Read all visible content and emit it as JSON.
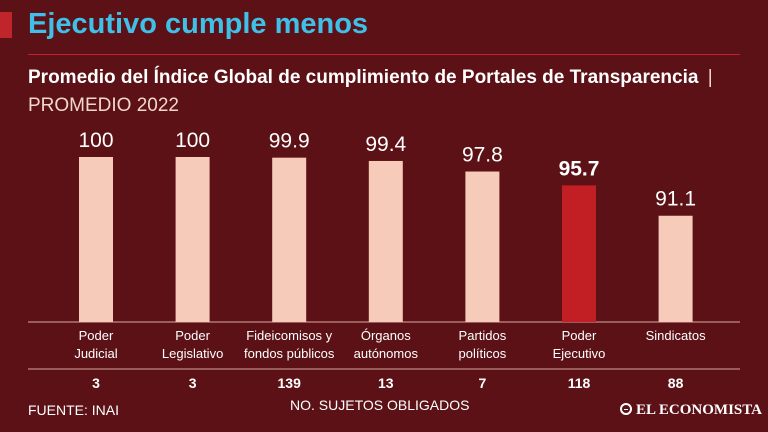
{
  "header": {
    "title": "Ejecutivo cumple menos",
    "subtitle_bold": "Promedio del Índice Global de cumplimiento de Portales de Transparencia",
    "subtitle_sep": "|",
    "subtitle_light": "PROMEDIO 2022"
  },
  "colors": {
    "background": "#5b1116",
    "bar": "#f6cbb9",
    "highlight_bar": "#c21f25",
    "headline": "#3fc0e8",
    "rule": "#c0252b"
  },
  "chart_data": {
    "type": "bar",
    "title": "Promedio del Índice Global de cumplimiento de Portales de Transparencia",
    "categories": [
      [
        "Poder",
        "Judicial"
      ],
      [
        "Poder",
        "Legislativo"
      ],
      [
        "Fideicomisos y",
        "fondos públicos"
      ],
      [
        "Órganos",
        "autónomos"
      ],
      [
        "Partidos",
        "políticos"
      ],
      [
        "Poder",
        "Ejecutivo"
      ],
      [
        "Sindicatos"
      ]
    ],
    "values": [
      100,
      100,
      99.9,
      99.4,
      97.8,
      95.7,
      91.1
    ],
    "value_labels": [
      "100",
      "100",
      "99.9",
      "99.4",
      "97.8",
      "95.7",
      "91.1"
    ],
    "highlight_index": 5,
    "sujetos_obligados": [
      "3",
      "3",
      "139",
      "13",
      "7",
      "118",
      "88"
    ],
    "ylim": [
      75,
      100
    ],
    "grid": false
  },
  "footer": {
    "axis_note": "NO. SUJETOS OBLIGADOS",
    "source": "FUENTE: INAI",
    "logo": "EL ECONOMISTA"
  }
}
